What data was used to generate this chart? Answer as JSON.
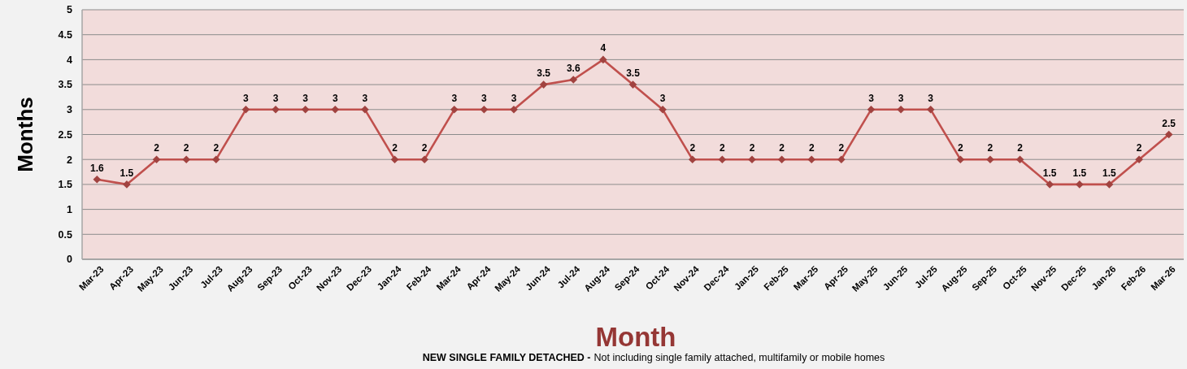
{
  "chart_data": {
    "type": "line",
    "xlabel": "Month",
    "ylabel": "Months",
    "annotations": [
      "NEW SINGLE FAMILY DETACHED -",
      "Not including single family attached, multifamily or mobile homes"
    ],
    "categories": [
      "Mar-23",
      "Apr-23",
      "May-23",
      "Jun-23",
      "Jul-23",
      "Aug-23",
      "Sep-23",
      "Oct-23",
      "Nov-23",
      "Dec-23",
      "Jan-24",
      "Feb-24",
      "Mar-24",
      "Apr-24",
      "May-24",
      "Jun-24",
      "Jul-24",
      "Aug-24",
      "Sep-24",
      "Oct-24",
      "Nov-24",
      "Dec-24",
      "Jan-25",
      "Feb-25",
      "Mar-25",
      "Apr-25",
      "May-25",
      "Jun-25",
      "Jul-25",
      "Aug-25",
      "Sep-25",
      "Oct-25",
      "Nov-25",
      "Dec-25",
      "Jan-26",
      "Feb-26",
      "Mar-26"
    ],
    "series": [
      {
        "color": "#c0504d",
        "values": [
          1.6,
          1.5,
          2,
          2,
          2,
          3,
          3,
          3,
          3,
          3,
          2,
          2,
          3,
          3,
          3,
          3.5,
          3.6,
          4,
          3.5,
          3,
          2,
          2,
          2,
          2,
          2,
          2,
          3,
          3,
          3,
          2,
          2,
          2,
          1.5,
          1.5,
          1.5,
          2,
          2.5
        ]
      }
    ],
    "ylim": [
      0,
      5
    ],
    "yticks": [
      0,
      0.5,
      1,
      1.5,
      2,
      2.5,
      3,
      3.5,
      4,
      4.5,
      5
    ],
    "grid": "y",
    "marker": "diamond",
    "line_style": "solid",
    "data_labels": true
  }
}
